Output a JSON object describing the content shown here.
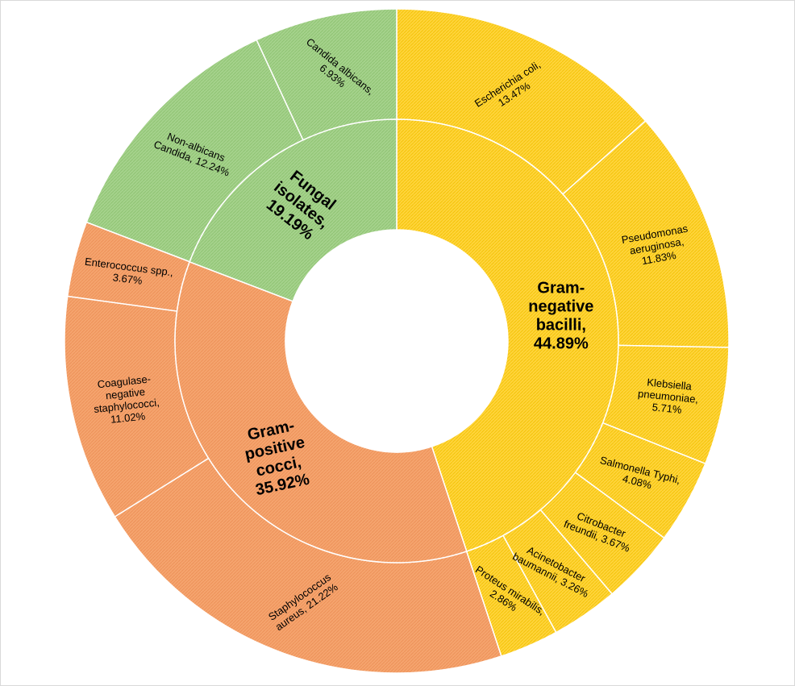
{
  "chart_data": {
    "type": "sunburst",
    "title": "",
    "inner_ring": [
      {
        "label": "Gram-negative bacilli",
        "value": 44.89,
        "label_lines": [
          "Gram-",
          "negative",
          "bacilli,",
          "44.89%"
        ],
        "color": "#ffd43b"
      },
      {
        "label": "Gram-positive cocci",
        "value": 35.92,
        "label_lines": [
          "Gram-",
          "positive",
          "cocci,",
          "35.92%"
        ],
        "color": "#f5a46e"
      },
      {
        "label": "Fungal isolates",
        "value": 19.19,
        "label_lines": [
          "Fungal",
          "isolates,",
          "19.19%"
        ],
        "color": "#a5d28c"
      }
    ],
    "outer_ring": [
      {
        "label": "Escherichia coli",
        "value": 13.47,
        "parent": "Gram-negative bacilli",
        "label_lines": [
          "Escherichia coli,",
          "13.47%"
        ]
      },
      {
        "label": "Pseudomonas aeruginosa",
        "value": 11.83,
        "parent": "Gram-negative bacilli",
        "label_lines": [
          "Pseudomonas",
          "aeruginosa,",
          "11.83%"
        ]
      },
      {
        "label": "Klebsiella pneumoniae",
        "value": 5.71,
        "parent": "Gram-negative bacilli",
        "label_lines": [
          "Klebsiella",
          "pneumoniae,",
          "5.71%"
        ]
      },
      {
        "label": "Salmonella Typhi",
        "value": 4.08,
        "parent": "Gram-negative bacilli",
        "label_lines": [
          "Salmonella Typhi,",
          "4.08%"
        ]
      },
      {
        "label": "Citrobacter freundii",
        "value": 3.67,
        "parent": "Gram-negative bacilli",
        "label_lines": [
          "Citrobacter",
          "freundii, 3.67%"
        ]
      },
      {
        "label": "Acinetobacter baumannii",
        "value": 3.26,
        "parent": "Gram-negative bacilli",
        "label_lines": [
          "Acinetobacter",
          "baumannii, 3.26%"
        ]
      },
      {
        "label": "Proteus mirabilis",
        "value": 2.86,
        "parent": "Gram-negative bacilli",
        "label_lines": [
          "Proteus mirabilis,",
          "2.86%"
        ]
      },
      {
        "label": "Staphylococcus aureus",
        "value": 21.22,
        "parent": "Gram-positive cocci",
        "label_lines": [
          "Staphylococcus",
          "aureus, 21.22%"
        ]
      },
      {
        "label": "Coagulase-negative staphylococci",
        "value": 11.02,
        "parent": "Gram-positive cocci",
        "label_lines": [
          "Coagulase-",
          "negative",
          "staphylococci,",
          "11.02%"
        ]
      },
      {
        "label": "Enterococcus spp.",
        "value": 3.67,
        "parent": "Gram-positive cocci",
        "label_lines": [
          "Enterococcus spp.,",
          "3.67%"
        ]
      },
      {
        "label": "Non-albicans Candida",
        "value": 12.24,
        "parent": "Fungal isolates",
        "label_lines": [
          "Non-albicans",
          "Candida, 12.24%"
        ]
      },
      {
        "label": "Candida albicans",
        "value": 6.93,
        "parent": "Fungal isolates",
        "label_lines": [
          "Candida albicans,",
          "6.93%"
        ]
      }
    ]
  }
}
